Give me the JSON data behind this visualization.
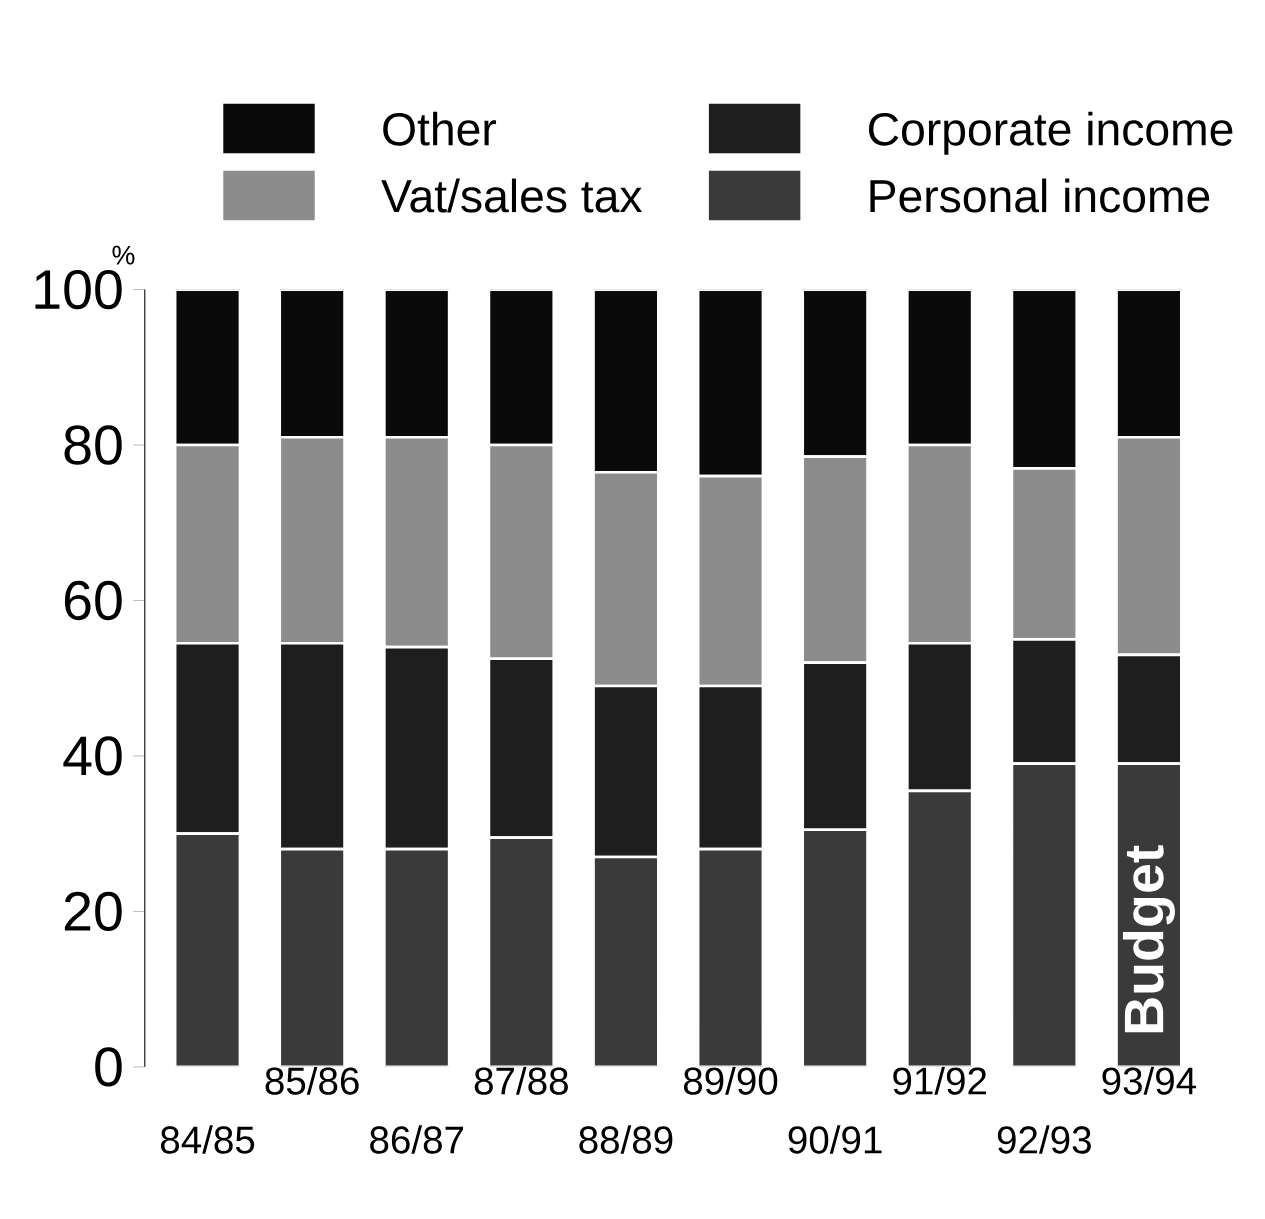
{
  "chart_data": {
    "type": "bar",
    "stacked": true,
    "ylabel": "%",
    "categories": [
      "84/85",
      "85/86",
      "86/87",
      "87/88",
      "88/89",
      "89/90",
      "90/91",
      "91/92",
      "92/93",
      "93/94"
    ],
    "series": [
      {
        "name": "Personal income",
        "color": "#3a3a3a",
        "values": [
          30,
          28,
          28,
          29.5,
          27,
          28,
          30.5,
          35.5,
          39,
          39
        ]
      },
      {
        "name": "Corporate income",
        "color": "#1e1e1e",
        "values": [
          24.5,
          26.5,
          26,
          23,
          22,
          21,
          21.5,
          19,
          16,
          14
        ]
      },
      {
        "name": "Vat/sales tax",
        "color": "#8c8c8c",
        "values": [
          25.5,
          26.5,
          27,
          27.5,
          27.5,
          27,
          26.5,
          25.5,
          22,
          28
        ]
      },
      {
        "name": "Other",
        "color": "#0a0a0a",
        "values": [
          20,
          19,
          19,
          20,
          23.5,
          24,
          21.5,
          20,
          23,
          19
        ]
      }
    ],
    "ylim": [
      0,
      100
    ],
    "yticks": [
      0,
      20,
      40,
      60,
      80,
      100
    ],
    "grid": false,
    "legend": "top",
    "annotations": [
      "Budget"
    ]
  }
}
